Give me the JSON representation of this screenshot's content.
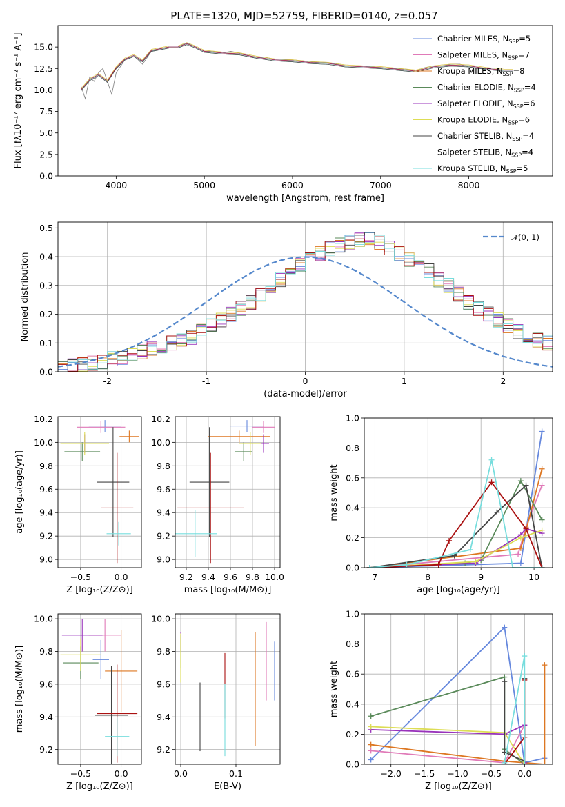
{
  "figure_title": "PLATE=1320, MJD=52759, FIBERID=0140, z=0.057",
  "series": [
    {
      "name": "Chabrier MILES",
      "nssp": "5",
      "color": "#6688dd"
    },
    {
      "name": "Salpeter MILES",
      "nssp": "7",
      "color": "#e07ab8"
    },
    {
      "name": "Kroupa MILES",
      "nssp": "8",
      "color": "#dd7722"
    },
    {
      "name": "Chabrier ELODIE",
      "nssp": "4",
      "color": "#5a8a5a"
    },
    {
      "name": "Salpeter ELODIE",
      "nssp": "6",
      "color": "#9933bb"
    },
    {
      "name": "Kroupa ELODIE",
      "nssp": "6",
      "color": "#dddd55"
    },
    {
      "name": "Chabrier STELIB",
      "nssp": "4",
      "color": "#444444"
    },
    {
      "name": "Salpeter STELIB",
      "nssp": "4",
      "color": "#aa1111"
    },
    {
      "name": "Kroupa STELIB",
      "nssp": "5",
      "color": "#77dddd"
    }
  ],
  "chart_data": [
    {
      "id": "spectrum",
      "type": "line",
      "xlabel": "wavelength [Angstrom, rest frame]",
      "ylabel": "Flux [fλ10⁻¹⁷ erg cm⁻² s⁻¹ A⁻¹]",
      "xlim": [
        3340,
        8950
      ],
      "ylim": [
        0,
        17.5
      ],
      "xticks": [
        4000,
        5000,
        6000,
        7000,
        8000
      ],
      "yticks": [
        0,
        2.5,
        5,
        7.5,
        10,
        12.5,
        15
      ],
      "ytick_labels": [
        "0.0",
        "2.5",
        "5.0",
        "7.5",
        "10.0",
        "12.5",
        "15.0"
      ],
      "legend_position": "upper right",
      "data_spectrum": {
        "color": "#888888",
        "x": [
          3600,
          3650,
          3700,
          3750,
          3800,
          3850,
          3900,
          3950,
          4000,
          4100,
          4200,
          4300,
          4400,
          4500,
          4600,
          4700,
          4800,
          4900,
          5000,
          5100,
          5200,
          5300,
          5400,
          5500,
          5600,
          5700,
          5800,
          5900,
          6000,
          6100,
          6200,
          6300,
          6400,
          6500,
          6600,
          6700,
          6800,
          6900,
          7000,
          7100,
          7200,
          7300,
          7400,
          7500,
          7600,
          7700,
          7800,
          7900,
          8000,
          8100,
          8200,
          8300,
          8400,
          8500
        ],
        "y": [
          10.5,
          9.0,
          11.5,
          11.0,
          12.0,
          12.5,
          11.0,
          9.5,
          12.0,
          13.5,
          14.0,
          13.0,
          14.5,
          14.8,
          15.0,
          15.0,
          15.5,
          15.0,
          14.5,
          14.5,
          14.3,
          14.5,
          14.3,
          14.0,
          13.8,
          13.8,
          13.5,
          13.5,
          13.5,
          13.4,
          13.3,
          13.2,
          13.2,
          13.0,
          12.8,
          12.8,
          12.8,
          12.7,
          12.6,
          12.5,
          12.5,
          12.4,
          12.2,
          12.6,
          12.8,
          12.8,
          13.0,
          13.0,
          12.7,
          12.5,
          12.5,
          12.4,
          12.3,
          12.3
        ]
      },
      "model_spectrum": {
        "color": "#77dddd",
        "x": [
          3600,
          3700,
          3800,
          3900,
          4000,
          4100,
          4200,
          4300,
          4400,
          4500,
          4600,
          4700,
          4800,
          4900,
          5000,
          5200,
          5400,
          5600,
          5800,
          6000,
          6200,
          6400,
          6600,
          6800,
          7000,
          7200,
          7400,
          7600,
          7800,
          8000,
          8200,
          8400,
          8500
        ],
        "y": [
          10.0,
          11.2,
          11.8,
          11.0,
          12.6,
          13.6,
          14.0,
          13.4,
          14.6,
          14.8,
          15.0,
          15.0,
          15.4,
          15.0,
          14.5,
          14.3,
          14.2,
          13.8,
          13.5,
          13.4,
          13.2,
          13.1,
          12.8,
          12.7,
          12.6,
          12.4,
          12.2,
          12.7,
          12.9,
          12.8,
          12.5,
          12.3,
          12.3
        ]
      }
    },
    {
      "id": "residuals",
      "type": "histogram",
      "xlabel": "(data-model)/error",
      "ylabel": "Normed distribution",
      "xlim": [
        -2.5,
        2.5
      ],
      "ylim": [
        0,
        0.52
      ],
      "xticks": [
        -2,
        -1,
        0,
        1,
        2
      ],
      "yticks": [
        0,
        0.1,
        0.2,
        0.3,
        0.4,
        0.5
      ],
      "ytick_labels": [
        "0.0",
        "0.1",
        "0.2",
        "0.3",
        "0.4",
        "0.5"
      ],
      "gauss_label": "𝒩(0, 1)",
      "gauss_color": "#5588cc",
      "bin_width": 0.1,
      "bin_start": -2.5,
      "mean_heights": [
        0.015,
        0.02,
        0.025,
        0.03,
        0.035,
        0.045,
        0.05,
        0.06,
        0.07,
        0.08,
        0.09,
        0.1,
        0.11,
        0.12,
        0.14,
        0.16,
        0.18,
        0.2,
        0.22,
        0.24,
        0.27,
        0.3,
        0.32,
        0.35,
        0.37,
        0.39,
        0.41,
        0.43,
        0.44,
        0.45,
        0.46,
        0.46,
        0.45,
        0.43,
        0.41,
        0.39,
        0.37,
        0.35,
        0.32,
        0.3,
        0.27,
        0.24,
        0.22,
        0.2,
        0.18,
        0.16,
        0.14,
        0.12,
        0.11,
        0.1
      ]
    },
    {
      "id": "age_vs_Z",
      "type": "errorbar",
      "xlabel": "Z [log₁₀(Z/Z⊙)]",
      "ylabel": "age  [log₁₀(age/yr)]",
      "xlim": [
        -0.78,
        0.25
      ],
      "ylim": [
        8.93,
        10.22
      ],
      "xticks": [
        -0.5,
        0.0
      ],
      "xtick_labels": [
        "−0.5",
        "0.0"
      ],
      "yticks": [
        9.0,
        9.2,
        9.4,
        9.6,
        9.8,
        10.0,
        10.2
      ],
      "points": [
        {
          "series": 0,
          "x": -0.2,
          "xerr": 0.2,
          "y": 10.14,
          "yerr": 0.05
        },
        {
          "series": 1,
          "x": -0.25,
          "xerr": 0.3,
          "y": 10.13,
          "yerr": 0.05
        },
        {
          "series": 2,
          "x": 0.1,
          "xerr": 0.12,
          "y": 10.05,
          "yerr": 0.05
        },
        {
          "series": 3,
          "x": -0.48,
          "xerr": 0.22,
          "y": 9.92,
          "yerr": 0.08
        },
        {
          "series": 4,
          "x": -0.45,
          "xerr": 0.3,
          "y": 9.99,
          "yerr": 0.08
        },
        {
          "series": 5,
          "x": -0.45,
          "xerr": 0.3,
          "y": 9.99,
          "yerr": 0.1
        },
        {
          "series": 6,
          "x": -0.1,
          "xerr": 0.2,
          "y": 9.66,
          "yerr": 0.47
        },
        {
          "series": 7,
          "x": -0.05,
          "xerr": 0.2,
          "y": 9.44,
          "yerr": 0.47
        },
        {
          "series": 8,
          "x": -0.03,
          "xerr": 0.15,
          "y": 9.22,
          "yerr": 0.1
        }
      ]
    },
    {
      "id": "age_vs_mass",
      "type": "errorbar",
      "xlabel": "mass [log₁₀(M/M⊙)]",
      "ylabel": "",
      "xlim": [
        9.1,
        10.05
      ],
      "ylim": [
        8.93,
        10.22
      ],
      "xticks": [
        9.2,
        9.4,
        9.6,
        9.8,
        10.0
      ],
      "xtick_labels": [
        "9.2",
        "9.4",
        "9.6",
        "9.8",
        "10.0"
      ],
      "yticks": [
        9.0,
        9.2,
        9.4,
        9.6,
        9.8,
        10.0,
        10.2
      ],
      "points": [
        {
          "series": 0,
          "x": 9.75,
          "xerr": 0.15,
          "y": 10.14,
          "yerr": 0.05
        },
        {
          "series": 1,
          "x": 9.9,
          "xerr": 0.1,
          "y": 10.13,
          "yerr": 0.05
        },
        {
          "series": 2,
          "x": 9.68,
          "xerr": 0.28,
          "y": 10.05,
          "yerr": 0.05
        },
        {
          "series": 3,
          "x": 9.72,
          "xerr": 0.08,
          "y": 9.92,
          "yerr": 0.08
        },
        {
          "series": 4,
          "x": 9.9,
          "xerr": 0.05,
          "y": 9.99,
          "yerr": 0.08
        },
        {
          "series": 5,
          "x": 9.78,
          "xerr": 0.1,
          "y": 9.99,
          "yerr": 0.1
        },
        {
          "series": 6,
          "x": 9.41,
          "xerr": 0.18,
          "y": 9.66,
          "yerr": 0.47
        },
        {
          "series": 7,
          "x": 9.42,
          "xerr": 0.3,
          "y": 9.44,
          "yerr": 0.47
        },
        {
          "series": 8,
          "x": 9.28,
          "xerr": 0.2,
          "y": 9.22,
          "yerr": 0.2
        }
      ]
    },
    {
      "id": "massweight_vs_age",
      "type": "line",
      "xlabel": "age  [log₁₀(age/yr)]",
      "ylabel": "mass weight",
      "xlim": [
        6.8,
        10.35
      ],
      "ylim": [
        0,
        1.0
      ],
      "xticks": [
        7,
        8,
        9,
        10
      ],
      "xtick_labels": [
        "7",
        "8",
        "9",
        "10"
      ],
      "yticks": [
        0,
        0.2,
        0.4,
        0.6,
        0.8,
        1.0
      ],
      "ytick_labels": [
        "0.0",
        "0.2",
        "0.4",
        "0.6",
        "0.8",
        "1.0"
      ],
      "lines": [
        {
          "series": 0,
          "x": [
            6.9,
            9.75,
            9.85,
            10.15
          ],
          "y": [
            0.0,
            0.03,
            0.25,
            0.91
          ]
        },
        {
          "series": 1,
          "x": [
            6.9,
            9.7,
            9.85,
            10.15
          ],
          "y": [
            0.0,
            0.09,
            0.27,
            0.55
          ]
        },
        {
          "series": 2,
          "x": [
            6.9,
            9.75,
            9.85,
            10.15
          ],
          "y": [
            0.0,
            0.13,
            0.25,
            0.66
          ]
        },
        {
          "series": 3,
          "x": [
            6.9,
            8.7,
            9.0,
            9.75,
            10.15
          ],
          "y": [
            0.0,
            0.03,
            0.05,
            0.58,
            0.32
          ]
        },
        {
          "series": 4,
          "x": [
            6.9,
            8.9,
            9.75,
            9.85,
            10.15
          ],
          "y": [
            0.0,
            0.03,
            0.22,
            0.26,
            0.23
          ]
        },
        {
          "series": 5,
          "x": [
            6.9,
            8.9,
            9.75,
            10.15
          ],
          "y": [
            0.0,
            0.04,
            0.2,
            0.25
          ]
        },
        {
          "series": 6,
          "x": [
            6.9,
            8.5,
            9.3,
            9.85,
            10.15
          ],
          "y": [
            0.0,
            0.08,
            0.37,
            0.55,
            0.0
          ]
        },
        {
          "series": 7,
          "x": [
            6.9,
            8.2,
            8.4,
            9.2,
            9.85,
            10.15
          ],
          "y": [
            0.0,
            0.02,
            0.18,
            0.57,
            0.26,
            0.0
          ]
        },
        {
          "series": 8,
          "x": [
            6.9,
            7.6,
            8.8,
            9.2,
            9.6,
            10.15
          ],
          "y": [
            0.0,
            0.02,
            0.12,
            0.72,
            0.0,
            0.0
          ]
        }
      ]
    },
    {
      "id": "mass_vs_Z",
      "type": "errorbar",
      "xlabel": "Z [log₁₀(Z/Z⊙)]",
      "ylabel": "mass [log₁₀(M/M⊙)]",
      "xlim": [
        -0.78,
        0.25
      ],
      "ylim": [
        9.11,
        10.03
      ],
      "xticks": [
        -0.5,
        0.0
      ],
      "xtick_labels": [
        "−0.5",
        "0.0"
      ],
      "yticks": [
        9.2,
        9.4,
        9.6,
        9.8,
        10.0
      ],
      "ytick_labels": [
        "9.2",
        "9.4",
        "9.6",
        "9.8",
        "10.0"
      ],
      "points": [
        {
          "series": 0,
          "x": -0.25,
          "xerr": 0.1,
          "y": 9.75,
          "yerr": 0.12
        },
        {
          "series": 1,
          "x": -0.2,
          "xerr": 0.2,
          "y": 9.9,
          "yerr": 0.1
        },
        {
          "series": 2,
          "x": 0.0,
          "xerr": 0.2,
          "y": 9.68,
          "yerr": 0.25
        },
        {
          "series": 3,
          "x": -0.5,
          "xerr": 0.22,
          "y": 9.73,
          "yerr": 0.1
        },
        {
          "series": 4,
          "x": -0.48,
          "xerr": 0.25,
          "y": 9.9,
          "yerr": 0.1
        },
        {
          "series": 5,
          "x": -0.5,
          "xerr": 0.25,
          "y": 9.78,
          "yerr": 0.1
        },
        {
          "series": 6,
          "x": -0.12,
          "xerr": 0.2,
          "y": 9.41,
          "yerr": 0.3
        },
        {
          "series": 7,
          "x": -0.05,
          "xerr": 0.25,
          "y": 9.42,
          "yerr": 0.3
        },
        {
          "series": 8,
          "x": -0.05,
          "xerr": 0.15,
          "y": 9.28,
          "yerr": 0.12
        }
      ]
    },
    {
      "id": "mass_vs_EBV",
      "type": "errorbar",
      "xlabel": "E(B-V)",
      "ylabel": "",
      "xlim": [
        -0.01,
        0.18
      ],
      "ylim": [
        9.11,
        10.03
      ],
      "xticks": [
        0.0,
        0.1
      ],
      "xtick_labels": [
        "0.0",
        "0.1"
      ],
      "yticks": [
        9.2,
        9.4,
        9.6,
        9.8,
        10.0
      ],
      "ytick_labels": [
        "9.2",
        "9.4",
        "9.6",
        "9.8",
        "10.0"
      ],
      "points": [
        {
          "series": 0,
          "x": 0.17,
          "xerr": 0.0,
          "y": 9.68,
          "yerr": 0.18
        },
        {
          "series": 1,
          "x": 0.155,
          "xerr": 0.0,
          "y": 9.74,
          "yerr": 0.24
        },
        {
          "series": 2,
          "x": 0.135,
          "xerr": 0.0,
          "y": 9.57,
          "yerr": 0.35
        },
        {
          "series": 3,
          "x": 0.0,
          "xerr": 0.0,
          "y": 9.8,
          "yerr": 0.1
        },
        {
          "series": 4,
          "x": 0.0,
          "xerr": 0.0,
          "y": 9.86,
          "yerr": 0.06
        },
        {
          "series": 5,
          "x": 0.0,
          "xerr": 0.0,
          "y": 9.76,
          "yerr": 0.15
        },
        {
          "series": 6,
          "x": 0.035,
          "xerr": 0.0,
          "y": 9.4,
          "yerr": 0.21
        },
        {
          "series": 7,
          "x": 0.08,
          "xerr": 0.0,
          "y": 9.59,
          "yerr": 0.2
        },
        {
          "series": 8,
          "x": 0.08,
          "xerr": 0.0,
          "y": 9.38,
          "yerr": 0.22
        }
      ]
    },
    {
      "id": "massweight_vs_Z",
      "type": "line",
      "xlabel": "Z [log₁₀(Z/Z⊙)]",
      "ylabel": "mass weight",
      "xlim": [
        -2.4,
        0.42
      ],
      "ylim": [
        0,
        1.0
      ],
      "xticks": [
        -2.0,
        -1.5,
        -1.0,
        -0.5,
        0.0
      ],
      "xtick_labels": [
        "−2.0",
        "−1.5",
        "−1.0",
        "−0.5",
        "0.0"
      ],
      "yticks": [
        0,
        0.2,
        0.4,
        0.6,
        0.8,
        1.0
      ],
      "ytick_labels": [
        "0.0",
        "0.2",
        "0.4",
        "0.6",
        "0.8",
        "1.0"
      ],
      "lines": [
        {
          "series": 0,
          "x": [
            -2.3,
            -0.3,
            0.0,
            0.3
          ],
          "y": [
            0.03,
            0.91,
            0.01,
            0.04
          ]
        },
        {
          "series": 1,
          "x": [
            -2.3,
            -0.3,
            0.0,
            0.0
          ],
          "y": [
            0.09,
            0.01,
            0.26,
            0.0
          ]
        },
        {
          "series": 2,
          "x": [
            -2.3,
            -0.3,
            0.3,
            0.3
          ],
          "y": [
            0.13,
            0.02,
            0.0,
            0.66
          ]
        },
        {
          "series": 3,
          "x": [
            -2.3,
            -0.3,
            -0.3,
            0.0
          ],
          "y": [
            0.32,
            0.58,
            0.1,
            0.0
          ]
        },
        {
          "series": 4,
          "x": [
            -2.3,
            -0.3,
            0.0,
            0.0
          ],
          "y": [
            0.23,
            0.2,
            0.26,
            0.01
          ]
        },
        {
          "series": 5,
          "x": [
            -2.3,
            -0.3,
            0.0
          ],
          "y": [
            0.25,
            0.21,
            0.0
          ]
        },
        {
          "series": 6,
          "x": [
            -0.3,
            -0.3,
            0.0,
            0.0
          ],
          "y": [
            0.55,
            0.08,
            0.02,
            0.57
          ]
        },
        {
          "series": 7,
          "x": [
            -0.3,
            0.0,
            0.0
          ],
          "y": [
            0.0,
            0.18,
            0.56
          ]
        },
        {
          "series": 8,
          "x": [
            -0.3,
            0.0,
            0.0
          ],
          "y": [
            0.01,
            0.72,
            0.0
          ]
        }
      ]
    }
  ]
}
